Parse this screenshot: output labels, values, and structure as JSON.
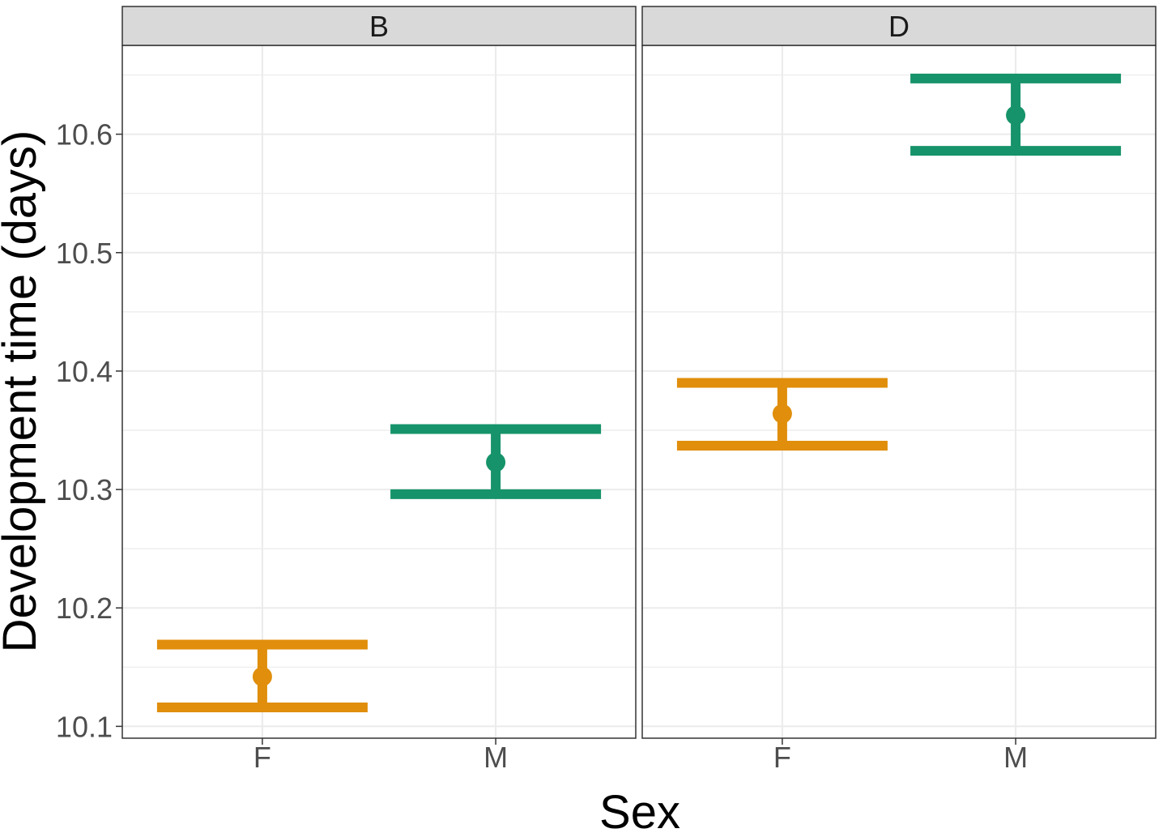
{
  "chart_data": {
    "type": "errorbar",
    "xlabel": "Sex",
    "ylabel": "Development time (days)",
    "ylim": [
      10.09,
      10.675
    ],
    "y_ticks": [
      "10.1",
      "10.2",
      "10.3",
      "10.4",
      "10.5",
      "10.6"
    ],
    "y_tick_values": [
      10.1,
      10.2,
      10.3,
      10.4,
      10.5,
      10.6
    ],
    "categories": [
      "F",
      "M"
    ],
    "grid": true,
    "colors": {
      "F": "#E08E0B",
      "M": "#16936A"
    },
    "panels": [
      {
        "label": "B",
        "points": [
          {
            "x": "F",
            "mean": 10.142,
            "lower": 10.116,
            "upper": 10.169
          },
          {
            "x": "M",
            "mean": 10.323,
            "lower": 10.296,
            "upper": 10.351
          }
        ]
      },
      {
        "label": "D",
        "points": [
          {
            "x": "F",
            "mean": 10.364,
            "lower": 10.337,
            "upper": 10.39
          },
          {
            "x": "M",
            "mean": 10.616,
            "lower": 10.586,
            "upper": 10.647
          }
        ]
      }
    ]
  }
}
